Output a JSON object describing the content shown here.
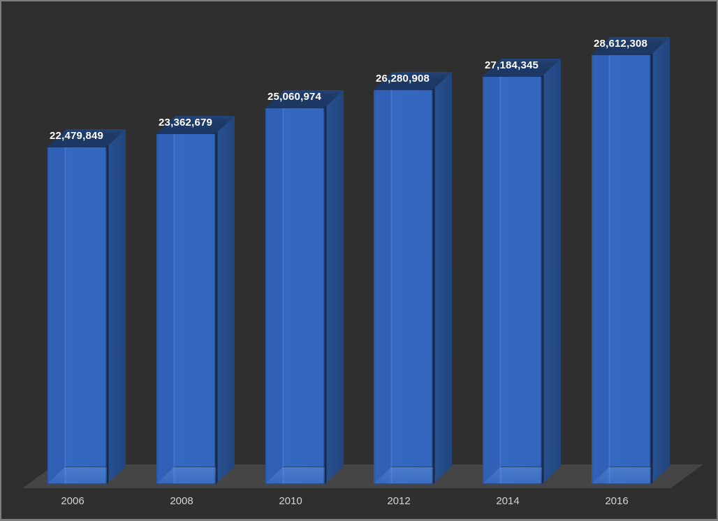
{
  "window": {
    "background_color": "#2f2f2f",
    "border_color": "#7e7e7e"
  },
  "chart_data": {
    "type": "bar",
    "subtype": "3d-column",
    "title": "",
    "xlabel": "",
    "ylabel": "",
    "categories": [
      "2006",
      "2008",
      "2010",
      "2012",
      "2014",
      "2016"
    ],
    "values": [
      22479849,
      23362679,
      25060974,
      26280908,
      27184345,
      28612308
    ],
    "data_labels": [
      "22,479,849",
      "23,362,679",
      "25,060,974",
      "26,280,908",
      "27,184,345",
      "28,612,308"
    ],
    "series_name": "",
    "ylim": [
      0,
      28612308
    ],
    "grid": false,
    "legend": false,
    "legend_position": "none",
    "colors": {
      "bar_front": "#3366bd",
      "bar_side": "#254a86",
      "bar_top": "#1e3a67",
      "bar_edge": "#16294e",
      "floor": "#454545",
      "background": "#2f2f2f",
      "data_label_text": "#ffffff",
      "category_label_text": "#d4d4d4"
    }
  }
}
